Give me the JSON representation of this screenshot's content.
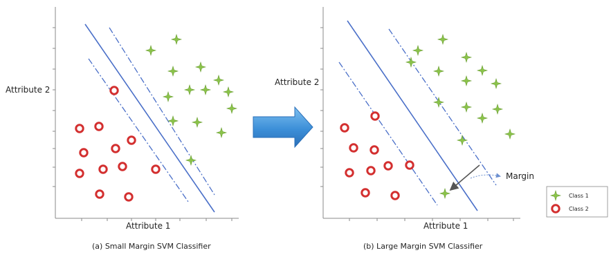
{
  "panel_a": {
    "ylabel": "Attribute 2",
    "xlabel": "Attribute 1",
    "caption": "(a) Small Margin SVM Classifier"
  },
  "panel_b": {
    "ylabel": "Attribute 2",
    "xlabel": "Attribute 1",
    "caption": "(b) Large Margin SVM Classifier",
    "margin_label": "Margin"
  },
  "legend": {
    "class1": "Class 1",
    "class2": "Class 2"
  },
  "colors": {
    "line": "#4a6fc8",
    "star": "#8bc34a",
    "ring": "#d32f2f",
    "arrow": "#3c8fd8",
    "axis": "#8a8a8a"
  }
}
